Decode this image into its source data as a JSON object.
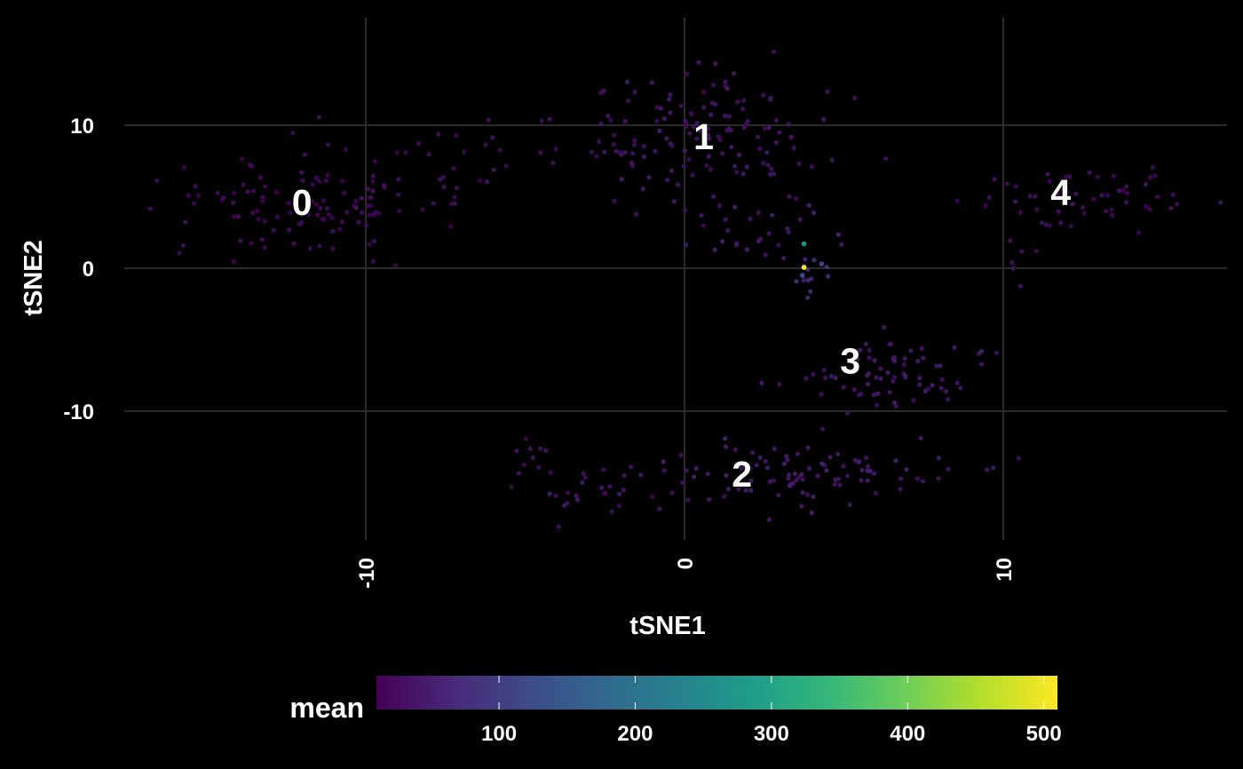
{
  "chart_data": {
    "type": "scatter",
    "title": "",
    "xlabel": "tSNE1",
    "ylabel": "tSNE2",
    "xlim": [
      -16.5,
      16.5
    ],
    "ylim": [
      -19.5,
      17.5
    ],
    "grid": true,
    "x_ticks": [
      -10,
      0,
      10
    ],
    "x_tick_labels": [
      "-10",
      "0",
      "10"
    ],
    "y_ticks": [
      -10,
      0,
      10
    ],
    "y_tick_labels": [
      "-10",
      "0",
      "10"
    ],
    "background": "#000000",
    "grid_color": "#2a2a2a",
    "color_scale": {
      "name": "mean",
      "palette": "viridis",
      "range": [
        10,
        510
      ],
      "ticks": [
        100,
        200,
        300,
        400,
        500
      ],
      "tick_labels": [
        "100",
        "200",
        "300",
        "400",
        "500"
      ],
      "colors": [
        "#440154",
        "#482878",
        "#3e4a89",
        "#31688e",
        "#26828e",
        "#1f9e89",
        "#35b779",
        "#6ece58",
        "#b5de2b",
        "#fde725"
      ],
      "position": "bottom"
    },
    "cluster_labels": [
      {
        "label": "0",
        "x": -12.0,
        "y": 4.6
      },
      {
        "label": "1",
        "x": 0.6,
        "y": 9.2
      },
      {
        "label": "2",
        "x": 1.8,
        "y": -14.4
      },
      {
        "label": "3",
        "x": 5.2,
        "y": -6.5
      },
      {
        "label": "4",
        "x": 11.8,
        "y": 5.3
      }
    ],
    "clusters": [
      {
        "id": "0",
        "center": [
          -12.2,
          4.2
        ],
        "spread": [
          2.7,
          2.7
        ],
        "count": 105,
        "mean": 20
      },
      {
        "id": "0b",
        "center": [
          -7.5,
          6.5
        ],
        "spread": [
          2.2,
          2.8
        ],
        "count": 20,
        "mean": 22
      },
      {
        "id": "1",
        "center": [
          0.5,
          9.5
        ],
        "spread": [
          2.6,
          3.2
        ],
        "count": 130,
        "mean": 35
      },
      {
        "id": "1a",
        "center": [
          -4.5,
          8.5
        ],
        "spread": [
          2.2,
          2.5
        ],
        "count": 18,
        "mean": 25
      },
      {
        "id": "1c",
        "center": [
          2.2,
          3.0
        ],
        "spread": [
          1.4,
          1.6
        ],
        "count": 28,
        "mean": 45
      },
      {
        "id": "1d",
        "center": [
          3.8,
          -0.6
        ],
        "spread": [
          0.6,
          0.8
        ],
        "count": 12,
        "mean": 70
      },
      {
        "id": "2",
        "center": [
          3.5,
          -14.3
        ],
        "spread": [
          3.2,
          1.4
        ],
        "count": 90,
        "mean": 45
      },
      {
        "id": "2a",
        "center": [
          -2.0,
          -15.6
        ],
        "spread": [
          2.2,
          1.1
        ],
        "count": 30,
        "mean": 30
      },
      {
        "id": "2c",
        "center": [
          -4.8,
          -13.5
        ],
        "spread": [
          1.0,
          1.5
        ],
        "count": 10,
        "mean": 25
      },
      {
        "id": "3",
        "center": [
          6.2,
          -7.8
        ],
        "spread": [
          2.5,
          1.8
        ],
        "count": 70,
        "mean": 40
      },
      {
        "id": "4",
        "center": [
          12.5,
          5.0
        ],
        "spread": [
          2.2,
          1.3
        ],
        "count": 55,
        "mean": 25
      },
      {
        "id": "4b",
        "center": [
          10.4,
          0.5
        ],
        "spread": [
          0.5,
          1.2
        ],
        "count": 6,
        "mean": 25
      }
    ],
    "highlight_points": [
      {
        "x": 3.75,
        "y": 0.05,
        "mean": 510
      },
      {
        "x": 3.75,
        "y": 1.7,
        "mean": 270
      },
      {
        "x": 4.3,
        "y": 0.3,
        "mean": 110
      },
      {
        "x": 3.7,
        "y": -0.5,
        "mean": 120
      }
    ]
  }
}
